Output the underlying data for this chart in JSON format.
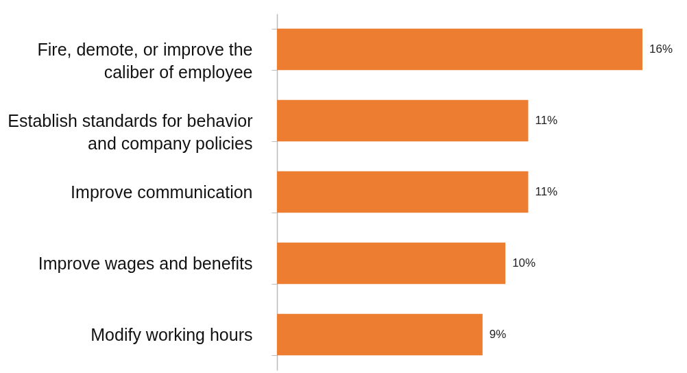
{
  "chart_data": {
    "type": "bar",
    "orientation": "horizontal",
    "categories": [
      "Fire, demote, or improve the caliber of employee",
      "Establish standards for behavior and company policies",
      "Improve communication",
      "Improve wages and benefits",
      "Modify working hours"
    ],
    "values": [
      16,
      11,
      11,
      10,
      9
    ],
    "value_labels": [
      "16%",
      "11%",
      "11%",
      "10%",
      "9%"
    ],
    "color": "#ed7d31",
    "tick_labels": "y"
  }
}
